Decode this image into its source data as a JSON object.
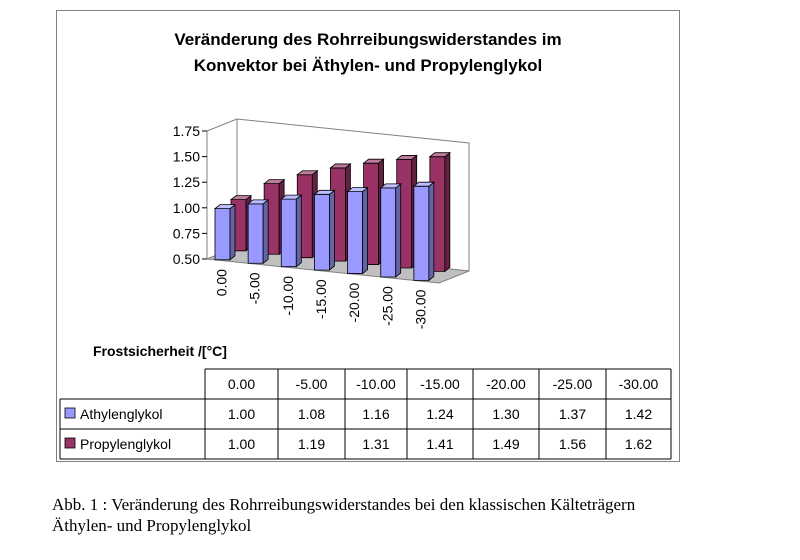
{
  "chart_data": {
    "type": "bar",
    "title_lines": [
      "Veränderung des Rohrreibungswiderstandes im",
      "Konvektor bei Äthylen- und Propylenglykol"
    ],
    "categories": [
      "0.00",
      "-5.00",
      "-10.00",
      "-15.00",
      "-20.00",
      "-25.00",
      "-30.00"
    ],
    "series": [
      {
        "name": "Athylenglykol",
        "color": "#9999ff",
        "values": [
          1.0,
          1.08,
          1.16,
          1.24,
          1.3,
          1.37,
          1.42
        ],
        "labels": [
          "1.00",
          "1.08",
          "1.16",
          "1.24",
          "1.30",
          "1.37",
          "1.42"
        ]
      },
      {
        "name": "Propylenglykol",
        "color": "#993366",
        "values": [
          1.0,
          1.19,
          1.31,
          1.41,
          1.49,
          1.56,
          1.62
        ],
        "labels": [
          "1.00",
          "1.19",
          "1.31",
          "1.41",
          "1.49",
          "1.56",
          "1.62"
        ]
      }
    ],
    "xlabel": "Frostsicherheit /[°C]",
    "ylabel": "",
    "ylim": [
      0.5,
      1.75
    ],
    "yticks": [
      "0.50",
      "0.75",
      "1.00",
      "1.25",
      "1.50",
      "1.75"
    ],
    "grid": false,
    "legend": "in data table",
    "style": "3d-clustered-column with data table"
  },
  "caption": {
    "line1": "Abb. 1 : Veränderung des Rohrreibungswiderstandes bei den klassischen Kälteträgern",
    "line2": "Äthylen- und Propylenglykol"
  }
}
